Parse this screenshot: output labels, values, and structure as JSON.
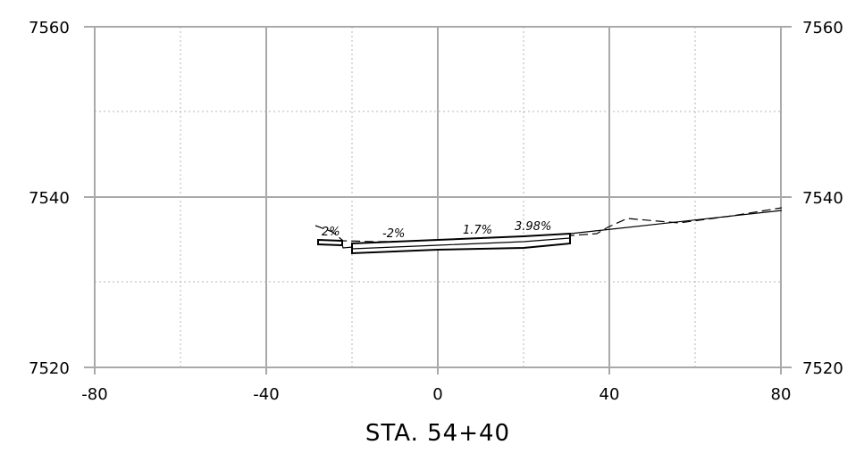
{
  "section": {
    "station_label": "STA. 54+40",
    "x_ticks": [
      "-80",
      "-40",
      "0",
      "40",
      "80"
    ],
    "y_ticks_left": [
      "7560",
      "7540",
      "7520"
    ],
    "y_ticks_right": [
      "7560",
      "7540",
      "7520"
    ],
    "x_range": [
      -80,
      80
    ],
    "y_range": [
      7520,
      7560
    ],
    "grid": true,
    "slope_labels": [
      "2%",
      "-2%",
      "1.7%",
      "3.98%"
    ],
    "colors": {
      "grid": "#a9a9a9",
      "line": "#000000",
      "background": "#ffffff"
    }
  }
}
